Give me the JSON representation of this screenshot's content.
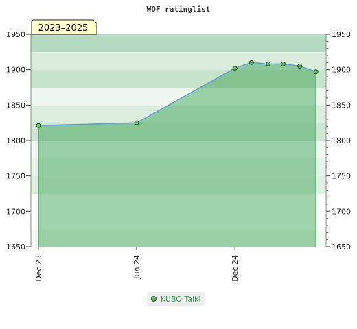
{
  "chart_data": {
    "type": "area",
    "title": "WOF ratinglist",
    "season_label": "2023–2025",
    "ylim": [
      1650,
      1950
    ],
    "y_ticks": [
      1650,
      1700,
      1750,
      1800,
      1850,
      1900,
      1950
    ],
    "x_range": [
      "2023-12-01",
      "2025-05-20"
    ],
    "x_ticks": [
      {
        "date": "2023-12-01",
        "label": "Dec 23"
      },
      {
        "date": "2024-06-01",
        "label": "Jun 24"
      },
      {
        "date": "2024-12-01",
        "label": "Dec 24"
      }
    ],
    "series": [
      {
        "name": "KUBO Taiki",
        "points": [
          {
            "x": "2023-12-01",
            "y": 1821
          },
          {
            "x": "2024-06-01",
            "y": 1825
          },
          {
            "x": "2024-12-01",
            "y": 1902
          },
          {
            "x": "2025-01-01",
            "y": 1910
          },
          {
            "x": "2025-02-01",
            "y": 1908
          },
          {
            "x": "2025-03-01",
            "y": 1908
          },
          {
            "x": "2025-04-01",
            "y": 1905
          },
          {
            "x": "2025-05-01",
            "y": 1897
          }
        ]
      }
    ],
    "colors": {
      "line": "#5a9fd4",
      "marker_fill": "#66bb66",
      "marker_stroke": "#1f4f1f",
      "area_fill": "#2e9e4a",
      "season_box_fill": "#ffffcc"
    }
  }
}
